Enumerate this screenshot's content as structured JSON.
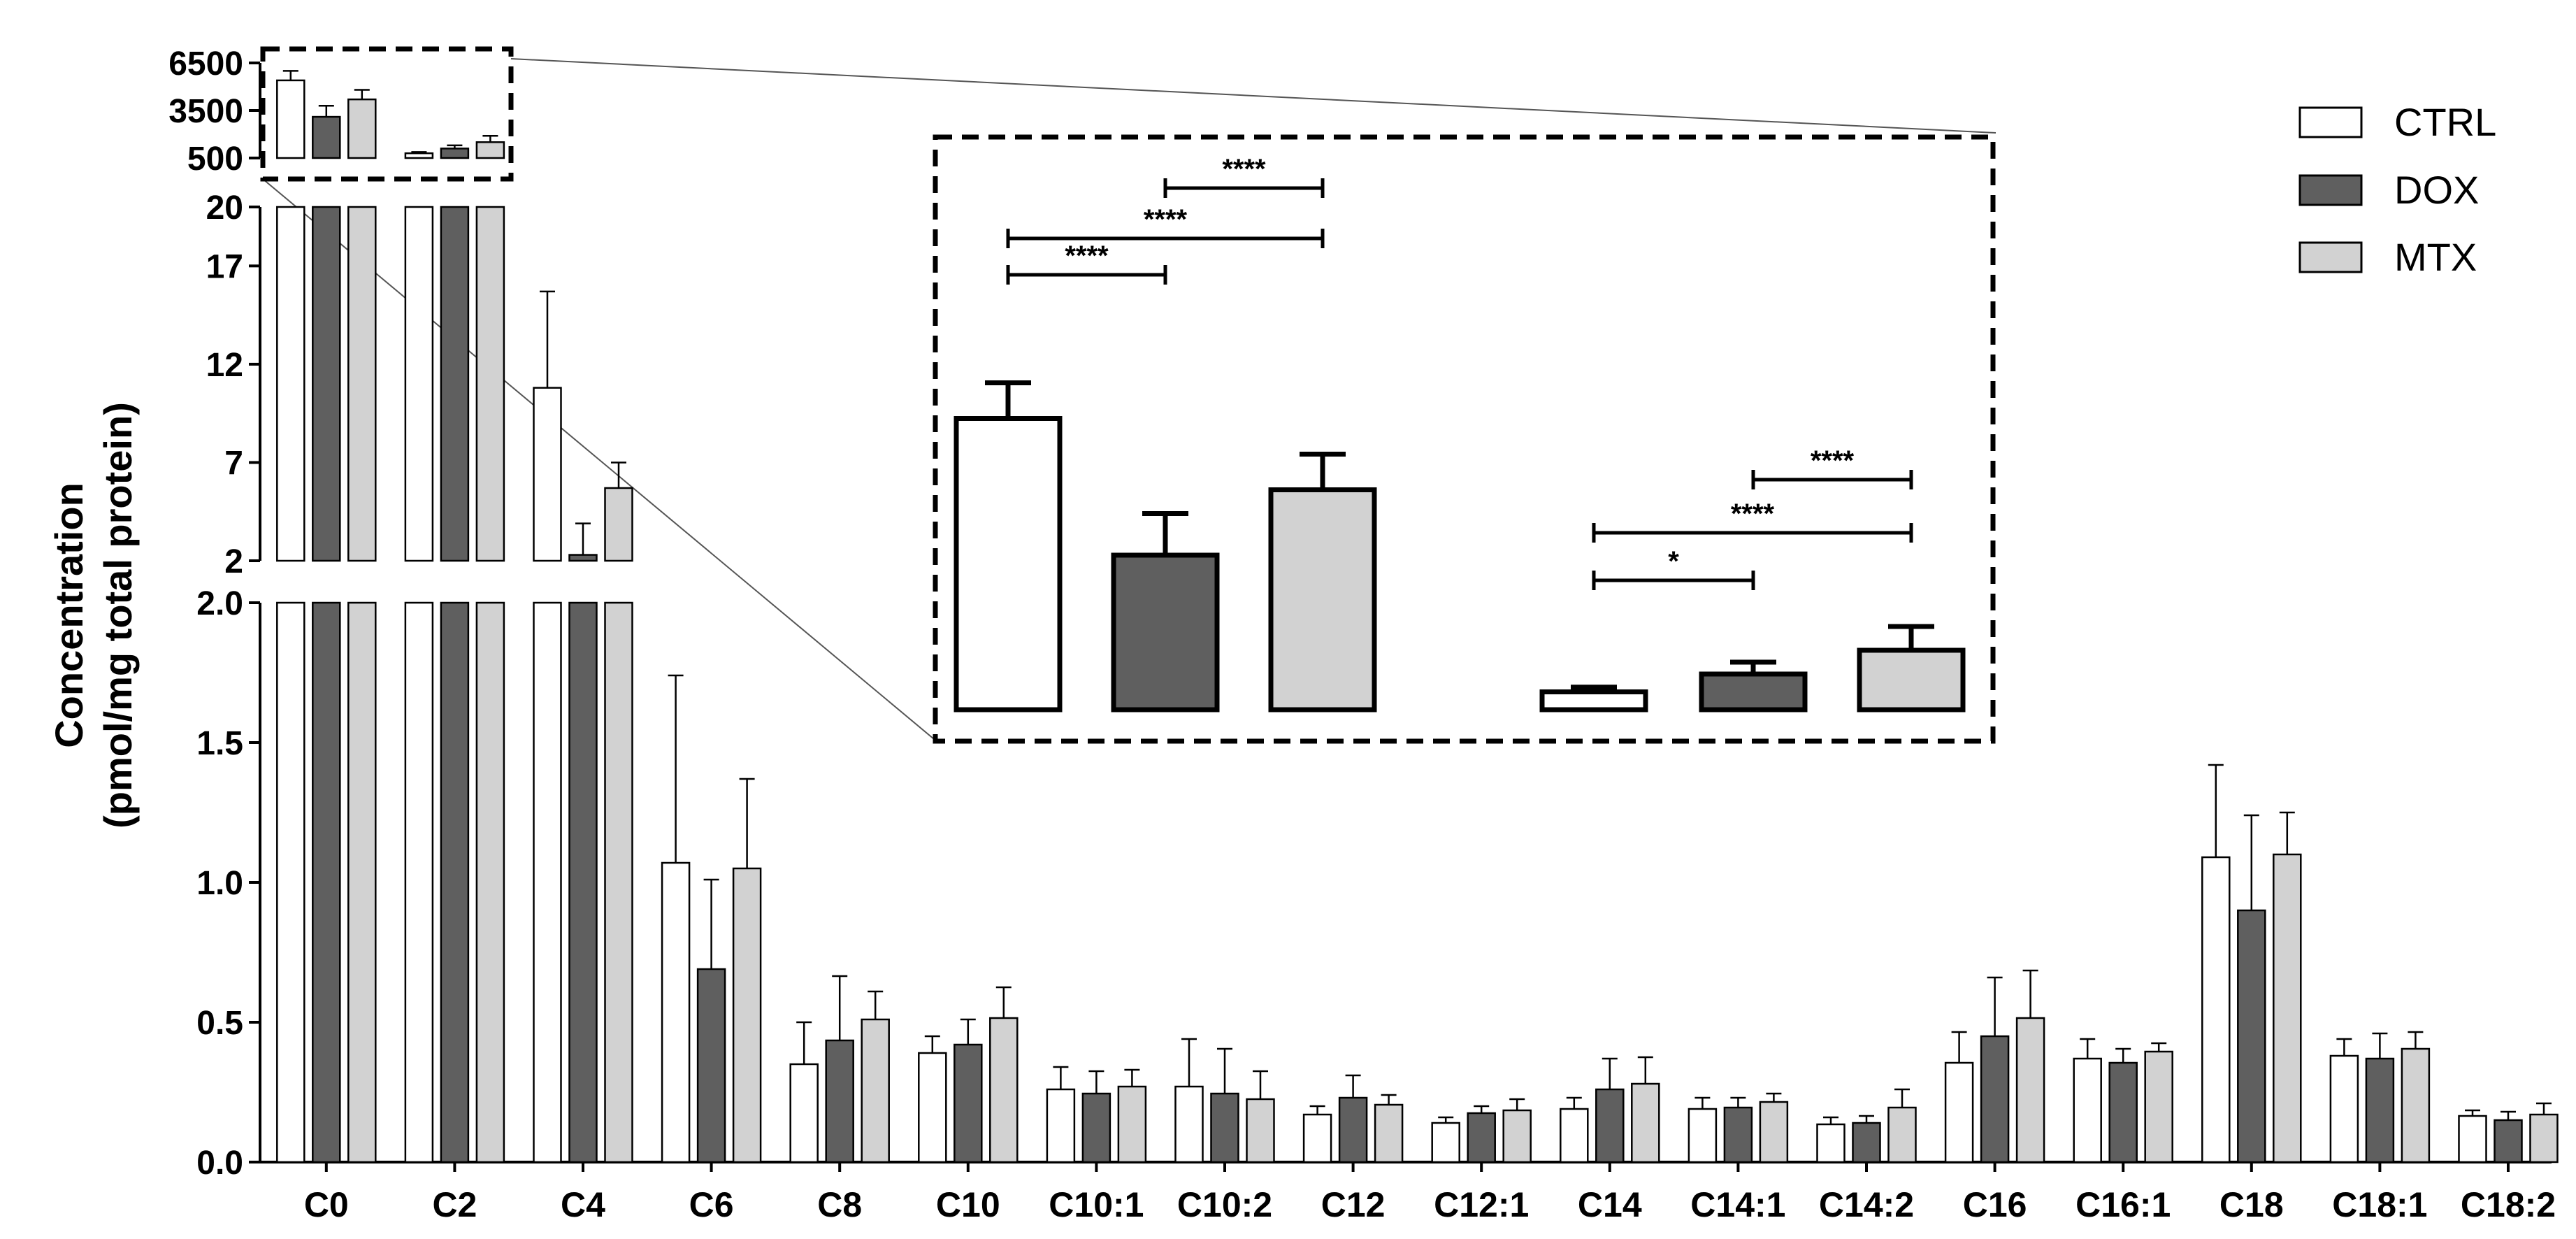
{
  "chart_data": {
    "type": "bar",
    "ylabel_line1": "Concentration",
    "ylabel_line2": "(pmol/mg total protein)",
    "categories": [
      "C0",
      "C2",
      "C4",
      "C6",
      "C8",
      "C10",
      "C10:1",
      "C10:2",
      "C12",
      "C12:1",
      "C14",
      "C14:1",
      "C14:2",
      "C16",
      "C16:1",
      "C18",
      "C18:1",
      "C18:2"
    ],
    "colors": {
      "CTRL": "#ffffff",
      "DOX": "#5f5f5f",
      "MTX": "#d2d2d2"
    },
    "series": [
      {
        "name": "CTRL",
        "values": [
          5400,
          800,
          10.8,
          1.07,
          0.35,
          0.39,
          0.26,
          0.27,
          0.17,
          0.14,
          0.19,
          0.19,
          0.135,
          0.355,
          0.37,
          1.09,
          0.38,
          0.165
        ],
        "errors": [
          600,
          80,
          4.9,
          0.67,
          0.15,
          0.06,
          0.08,
          0.17,
          0.03,
          0.02,
          0.04,
          0.04,
          0.025,
          0.11,
          0.07,
          0.33,
          0.06,
          0.02
        ]
      },
      {
        "name": "DOX",
        "values": [
          3100,
          1100,
          2.3,
          0.69,
          0.435,
          0.42,
          0.245,
          0.245,
          0.23,
          0.175,
          0.26,
          0.195,
          0.14,
          0.45,
          0.355,
          0.9,
          0.37,
          0.15
        ],
        "errors": [
          700,
          200,
          1.6,
          0.32,
          0.23,
          0.09,
          0.08,
          0.16,
          0.08,
          0.025,
          0.11,
          0.035,
          0.025,
          0.21,
          0.05,
          0.34,
          0.09,
          0.03
        ]
      },
      {
        "name": "MTX",
        "values": [
          4200,
          1500,
          5.7,
          1.05,
          0.51,
          0.515,
          0.27,
          0.225,
          0.205,
          0.185,
          0.28,
          0.215,
          0.195,
          0.515,
          0.395,
          1.1,
          0.405,
          0.17
        ],
        "errors": [
          600,
          400,
          1.3,
          0.32,
          0.1,
          0.11,
          0.06,
          0.1,
          0.035,
          0.04,
          0.095,
          0.03,
          0.065,
          0.17,
          0.03,
          0.15,
          0.06,
          0.04
        ]
      }
    ],
    "y_segments": [
      {
        "range": [
          0,
          2.0
        ],
        "ticks": [
          "0.0",
          "0.5",
          "1.0",
          "1.5",
          "2.0"
        ]
      },
      {
        "range": [
          2,
          20
        ],
        "ticks": [
          "2",
          "7",
          "12",
          "17",
          "20"
        ]
      },
      {
        "range": [
          500,
          6500
        ],
        "ticks": [
          "500",
          "3500",
          "6500"
        ]
      }
    ],
    "legend": {
      "placement": "top-right",
      "entries": [
        "CTRL",
        "DOX",
        "MTX"
      ]
    },
    "inset": {
      "source": "C0 and C2 on the 500–6500 axis",
      "significance": [
        {
          "group": "C0",
          "pair": [
            "CTRL",
            "DOX"
          ],
          "label": "****"
        },
        {
          "group": "C0",
          "pair": [
            "CTRL",
            "MTX"
          ],
          "label": "****"
        },
        {
          "group": "C0",
          "pair": [
            "DOX",
            "MTX"
          ],
          "label": "****"
        },
        {
          "group": "C2",
          "pair": [
            "CTRL",
            "DOX"
          ],
          "label": "*"
        },
        {
          "group": "C2",
          "pair": [
            "CTRL",
            "MTX"
          ],
          "label": "****"
        },
        {
          "group": "C2",
          "pair": [
            "DOX",
            "MTX"
          ],
          "label": "****"
        }
      ]
    }
  }
}
